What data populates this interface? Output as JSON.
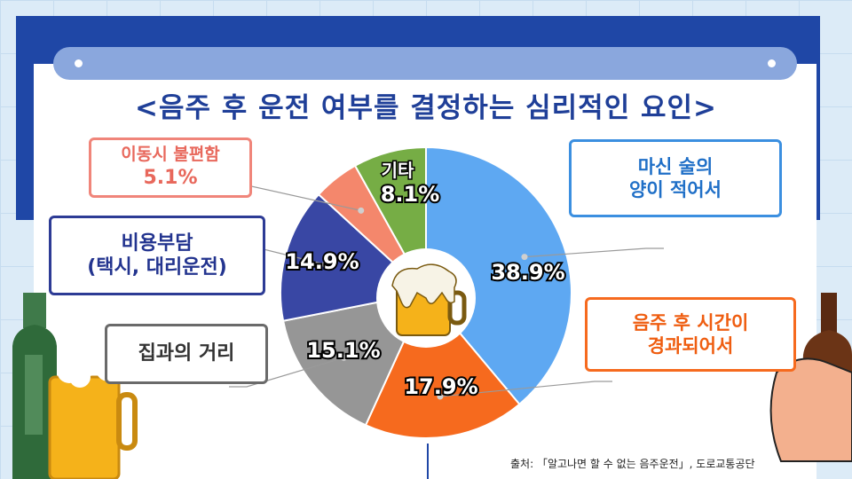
{
  "title": "<음주 후 운전 여부를 결정하는 심리적인 요인>",
  "source": "출처: 「알고나면 할 수 없는 음주운전」, 도로교통공단",
  "chart_data": {
    "type": "pie",
    "title": "<음주 후 운전 여부를 결정하는 심리적인 요인>",
    "unit": "%",
    "slices": [
      {
        "label": "마신 술의 양이 적어서",
        "value": 38.9,
        "display": "38.9%",
        "color": "#5ea8f2"
      },
      {
        "label": "음주 후 시간이 경과되어서",
        "value": 17.9,
        "display": "17.9%",
        "color": "#f66a1e"
      },
      {
        "label": "집과의 거리",
        "value": 15.1,
        "display": "15.1%",
        "color": "#969696"
      },
      {
        "label": "비용부담 (택시, 대리운전)",
        "value": 14.9,
        "display": "14.9%",
        "color": "#3947a4"
      },
      {
        "label": "이동시 불편함",
        "value": 5.1,
        "display": "5.1%",
        "color": "#f4876c"
      },
      {
        "label": "기타",
        "value": 8.1,
        "display": "8.1%",
        "color": "#76ad45"
      }
    ]
  },
  "boxes": {
    "drink_less": {
      "line1": "마신 술의",
      "line2": "양이 적어서"
    },
    "time_passed": {
      "line1": "음주 후 시간이",
      "line2": "경과되어서"
    },
    "distance": {
      "line1": "집과의 거리"
    },
    "cost": {
      "line1": "비용부담",
      "line2": "(택시, 대리운전)"
    },
    "inconvenience": {
      "line1": "이동시 불편함",
      "line2": "5.1%"
    },
    "other_label": "기타"
  }
}
